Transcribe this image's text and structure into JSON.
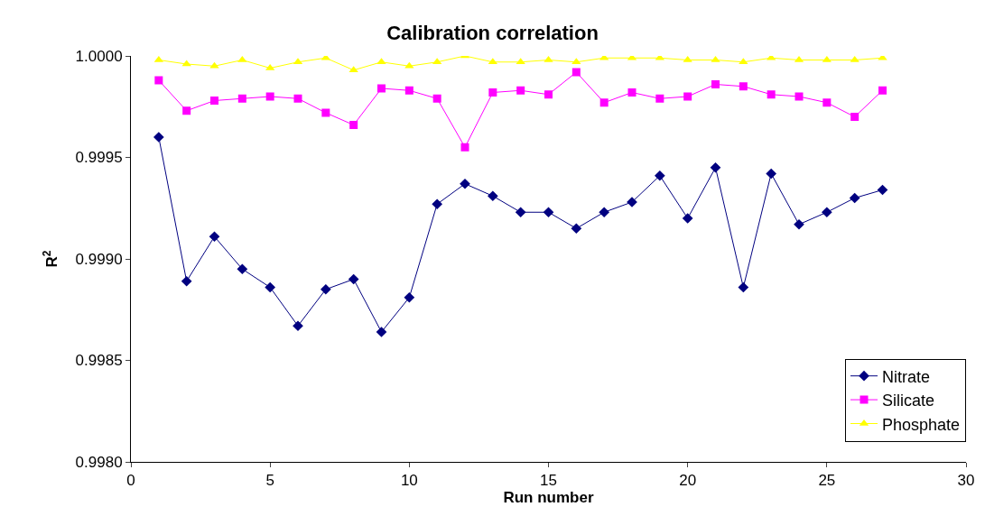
{
  "chart_data": {
    "type": "line",
    "title": "Calibration correlation",
    "xlabel": "Run number",
    "ylabel": "R$^{2}$",
    "x": [
      1,
      2,
      3,
      4,
      5,
      6,
      7,
      8,
      9,
      10,
      11,
      12,
      13,
      14,
      15,
      16,
      17,
      18,
      19,
      20,
      21,
      22,
      23,
      24,
      25,
      26,
      27
    ],
    "series": [
      {
        "name": "Nitrate",
        "color": "#000080",
        "marker": "diamond",
        "values": [
          0.9996,
          0.99889,
          0.99911,
          0.99895,
          0.99886,
          0.99867,
          0.99885,
          0.9989,
          0.99864,
          0.99881,
          0.99927,
          0.99937,
          0.99931,
          0.99923,
          0.99923,
          0.99915,
          0.99923,
          0.99928,
          0.99941,
          0.9992,
          0.99945,
          0.99886,
          0.99942,
          0.99917,
          0.99923,
          0.9993,
          0.99934
        ]
      },
      {
        "name": "Silicate",
        "color": "#ff00ff",
        "marker": "square",
        "values": [
          0.99988,
          0.99973,
          0.99978,
          0.99979,
          0.9998,
          0.99979,
          0.99972,
          0.99966,
          0.99984,
          0.99983,
          0.99979,
          0.99955,
          0.99982,
          0.99983,
          0.99981,
          0.99992,
          0.99977,
          0.99982,
          0.99979,
          0.9998,
          0.99986,
          0.99985,
          0.99981,
          0.9998,
          0.99977,
          0.9997,
          0.99983
        ]
      },
      {
        "name": "Phosphate",
        "color": "#ffff00",
        "marker": "triangle",
        "values": [
          0.99998,
          0.99996,
          0.99995,
          0.99998,
          0.99994,
          0.99997,
          0.99999,
          0.99993,
          0.99997,
          0.99995,
          0.99997,
          1.0,
          0.99997,
          0.99997,
          0.99998,
          0.99997,
          0.99999,
          0.99999,
          0.99999,
          0.99998,
          0.99998,
          0.99997,
          0.99999,
          0.99998,
          0.99998,
          0.99998,
          0.99999
        ]
      }
    ],
    "xlim": [
      0,
      30
    ],
    "xticks": [
      0,
      5,
      10,
      15,
      20,
      25,
      30
    ],
    "ylim": [
      0.998,
      1.0
    ],
    "yticks": [
      {
        "value": 0.998,
        "label": "0.9980"
      },
      {
        "value": 0.9985,
        "label": "0.9985"
      },
      {
        "value": 0.999,
        "label": "0.9990"
      },
      {
        "value": 0.9995,
        "label": "0.9995"
      },
      {
        "value": 1.0,
        "label": "1.0000"
      }
    ],
    "grid": false,
    "legend": "bottom right",
    "line_style": "solid"
  }
}
